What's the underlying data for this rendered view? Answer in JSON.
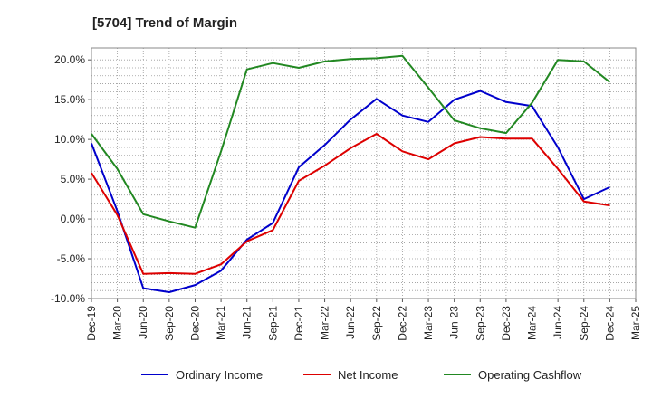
{
  "chart_data": {
    "type": "line",
    "title": "[5704]  Trend of Margin",
    "xlabel": "",
    "ylabel": "",
    "x": [
      "Dec-19",
      "Mar-20",
      "Jun-20",
      "Sep-20",
      "Dec-20",
      "Mar-21",
      "Jun-21",
      "Sep-21",
      "Dec-21",
      "Mar-22",
      "Jun-22",
      "Sep-22",
      "Dec-22",
      "Mar-23",
      "Jun-23",
      "Sep-23",
      "Dec-23",
      "Mar-24",
      "Jun-24",
      "Sep-24",
      "Dec-24",
      "Mar-25"
    ],
    "ylim": [
      -10,
      21.5
    ],
    "yticks": [
      -10,
      -5,
      0,
      5,
      10,
      15,
      20
    ],
    "ytick_labels": [
      "-10.0%",
      "-5.0%",
      "0.0%",
      "5.0%",
      "10.0%",
      "15.0%",
      "20.0%"
    ],
    "grid": true,
    "legend_position": "bottom",
    "series": [
      {
        "name": "Ordinary Income",
        "color": "#0000cc",
        "values": [
          9.5,
          1.0,
          -8.7,
          -9.2,
          -8.3,
          -6.5,
          -2.6,
          -0.5,
          6.5,
          9.3,
          12.5,
          15.1,
          13.0,
          12.2,
          15.0,
          16.1,
          14.7,
          14.2,
          9.0,
          2.5,
          4.0,
          null
        ]
      },
      {
        "name": "Net Income",
        "color": "#dd0000",
        "values": [
          5.8,
          0.5,
          -6.9,
          -6.8,
          -6.9,
          -5.7,
          -2.8,
          -1.4,
          4.8,
          6.7,
          8.9,
          10.7,
          8.5,
          7.5,
          9.5,
          10.3,
          10.1,
          10.1,
          6.3,
          2.2,
          1.7,
          null
        ]
      },
      {
        "name": "Operating Cashflow",
        "color": "#228822",
        "values": [
          10.7,
          6.3,
          0.6,
          -0.3,
          -1.1,
          8.5,
          18.8,
          19.6,
          19.0,
          19.8,
          20.1,
          20.2,
          20.5,
          16.5,
          12.4,
          11.4,
          10.8,
          14.6,
          20.0,
          19.8,
          17.2,
          null
        ]
      }
    ]
  }
}
